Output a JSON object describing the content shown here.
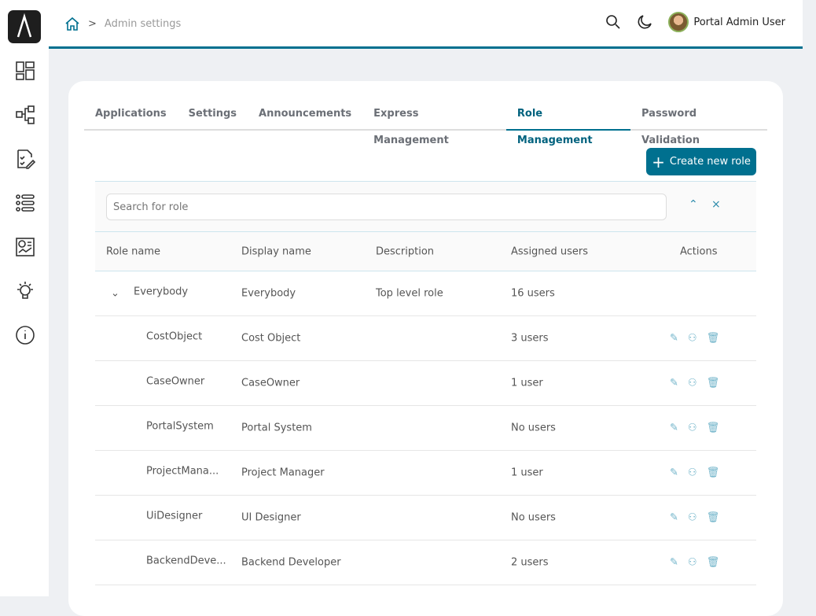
{
  "breadcrumb": {
    "current": "Admin settings"
  },
  "user": {
    "name": "Portal Admin User"
  },
  "tabs": [
    "Applications",
    "Settings",
    "Announcements",
    "Express Management",
    "Role Management",
    "Password Validation"
  ],
  "active_tab": "Role Management",
  "create_label": "Create new role",
  "search_placeholder": "Search for role",
  "columns": [
    "Role name",
    "Display name",
    "Description",
    "Assigned users",
    "Actions"
  ],
  "parent": {
    "role": "Everybody",
    "display": "Everybody",
    "description": "Top level role",
    "users": "16 users"
  },
  "rows": [
    {
      "role": "CostObject",
      "display": "Cost Object",
      "users": "3 users"
    },
    {
      "role": "CaseOwner",
      "display": "CaseOwner",
      "users": "1 user"
    },
    {
      "role": "PortalSystem",
      "display": "Portal System",
      "users": "No users"
    },
    {
      "role": "ProjectMana...",
      "display": "Project Manager",
      "users": "1 user"
    },
    {
      "role": "UiDesigner",
      "display": "UI Designer",
      "users": "No users"
    },
    {
      "role": "BackendDeve...",
      "display": "Backend Developer",
      "users": "2 users"
    }
  ],
  "colors": {
    "accent": "#00708f"
  }
}
